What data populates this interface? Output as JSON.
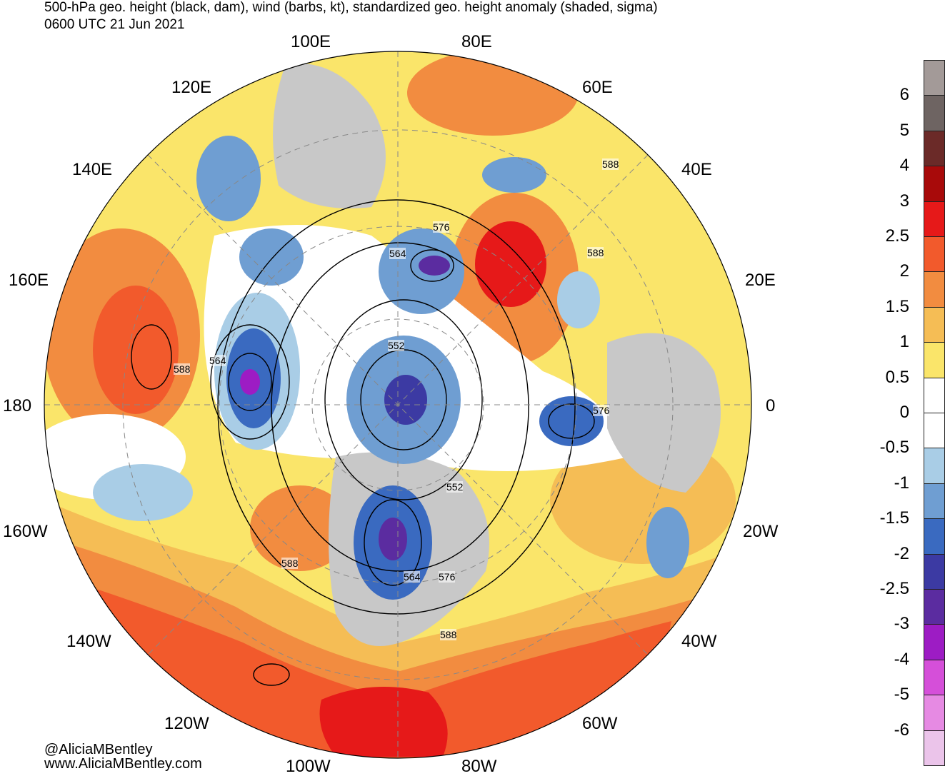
{
  "title": {
    "line1": "500-hPa geo. height (black, dam), wind (barbs, kt), standardized geo. height anomaly (shaded, sigma)",
    "line2": "0600 UTC 21 Jun 2021"
  },
  "longitude_labels": [
    "100E",
    "80E",
    "120E",
    "60E",
    "140E",
    "40E",
    "160E",
    "20E",
    "180",
    "0",
    "160W",
    "20W",
    "140W",
    "40W",
    "120W",
    "60W",
    "100W",
    "80W"
  ],
  "height_contour_labels": [
    "588",
    "576",
    "564",
    "588",
    "564",
    "588",
    "552",
    "576",
    "552",
    "588",
    "564",
    "576",
    "588"
  ],
  "credits": {
    "twitter": "@AliciaMBentley",
    "website": "www.AliciaMBentley.com"
  },
  "colorbar": {
    "labels": [
      "6",
      "5",
      "4",
      "3",
      "2.5",
      "2",
      "1.5",
      "1",
      "0.5",
      "0",
      "-0.5",
      "-1",
      "-1.5",
      "-2",
      "-2.5",
      "-3",
      "-4",
      "-5",
      "-6"
    ],
    "colors": [
      "#a39a98",
      "#6e6462",
      "#6b2a28",
      "#a80a0a",
      "#e61919",
      "#f25a2c",
      "#f28c40",
      "#f5bd55",
      "#fae56a",
      "#ffffff",
      "#ffffff",
      "#a9cde6",
      "#6f9ed2",
      "#3a6ac0",
      "#3c3aa3",
      "#5b2ca0",
      "#9d1cc4",
      "#d54fd9",
      "#e68ae3",
      "#ebc4ea"
    ]
  }
}
